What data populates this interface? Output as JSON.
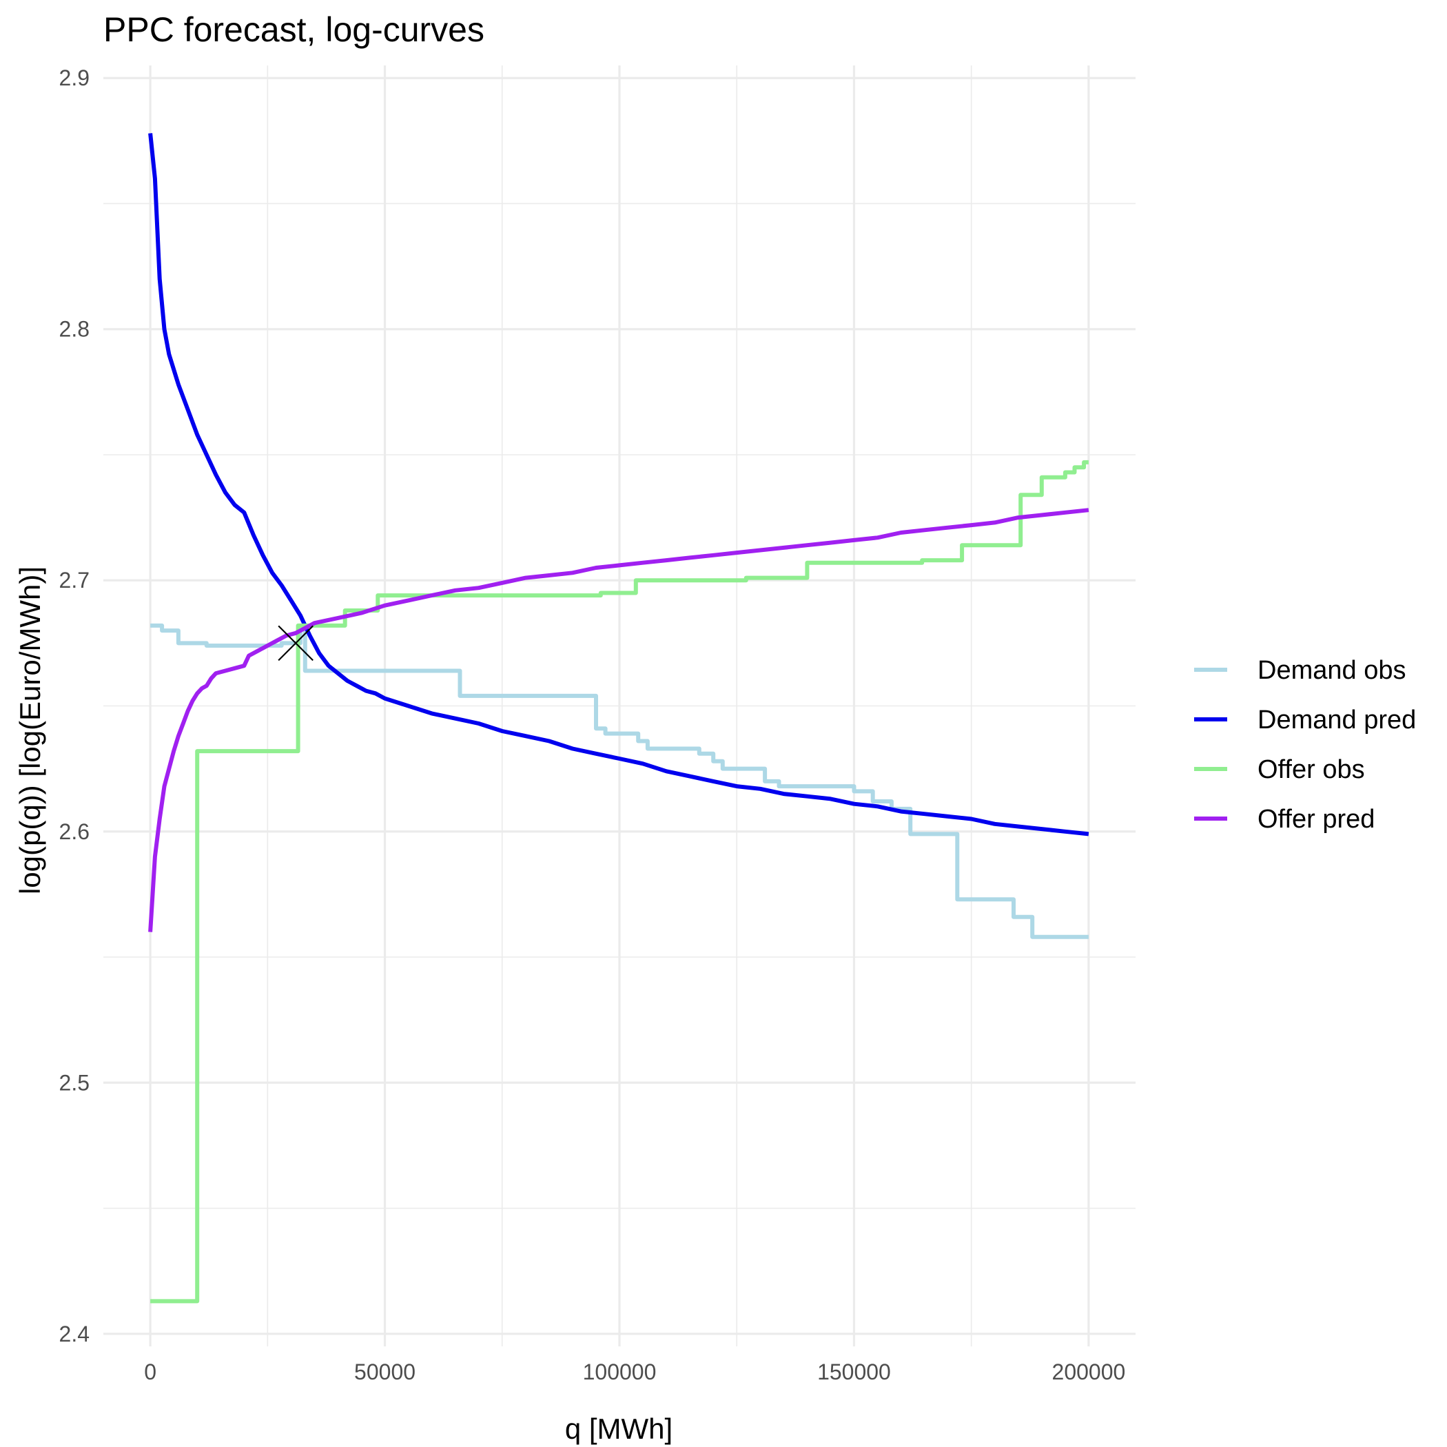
{
  "chart_data": {
    "type": "line",
    "title": "PPC forecast, log-curves",
    "xlabel": "q [MWh]",
    "ylabel": "log(p(q)) [log(Euro/MWh)]",
    "xlim": [
      -10000,
      210000
    ],
    "ylim": [
      2.395,
      2.905
    ],
    "x_ticks": [
      0,
      50000,
      100000,
      150000,
      200000
    ],
    "x_tick_labels": [
      "0",
      "50000",
      "100000",
      "150000",
      "200000"
    ],
    "y_ticks": [
      2.4,
      2.5,
      2.6,
      2.7,
      2.8,
      2.9
    ],
    "y_tick_labels": [
      "2.4",
      "2.5",
      "2.6",
      "2.7",
      "2.8",
      "2.9"
    ],
    "grid": true,
    "legend_position": "right",
    "series": [
      {
        "name": "Demand obs",
        "color": "#add8e6",
        "step": true,
        "points": [
          [
            0,
            2.682
          ],
          [
            2500,
            2.682
          ],
          [
            2500,
            2.68
          ],
          [
            6000,
            2.68
          ],
          [
            6000,
            2.675
          ],
          [
            12000,
            2.675
          ],
          [
            12000,
            2.674
          ],
          [
            28000,
            2.674
          ],
          [
            28000,
            2.675
          ],
          [
            32000,
            2.675
          ],
          [
            32000,
            2.682
          ],
          [
            33000,
            2.682
          ],
          [
            33000,
            2.664
          ],
          [
            66000,
            2.664
          ],
          [
            66000,
            2.654
          ],
          [
            95000,
            2.654
          ],
          [
            95000,
            2.641
          ],
          [
            97000,
            2.641
          ],
          [
            97000,
            2.639
          ],
          [
            104000,
            2.639
          ],
          [
            104000,
            2.636
          ],
          [
            106000,
            2.636
          ],
          [
            106000,
            2.633
          ],
          [
            117000,
            2.633
          ],
          [
            117000,
            2.631
          ],
          [
            120000,
            2.631
          ],
          [
            120000,
            2.628
          ],
          [
            122000,
            2.628
          ],
          [
            122000,
            2.625
          ],
          [
            131000,
            2.625
          ],
          [
            131000,
            2.62
          ],
          [
            134000,
            2.62
          ],
          [
            134000,
            2.618
          ],
          [
            150000,
            2.618
          ],
          [
            150000,
            2.616
          ],
          [
            154000,
            2.616
          ],
          [
            154000,
            2.612
          ],
          [
            158000,
            2.612
          ],
          [
            158000,
            2.609
          ],
          [
            162000,
            2.609
          ],
          [
            162000,
            2.599
          ],
          [
            172000,
            2.599
          ],
          [
            172000,
            2.573
          ],
          [
            184000,
            2.573
          ],
          [
            184000,
            2.566
          ],
          [
            188000,
            2.566
          ],
          [
            188000,
            2.558
          ],
          [
            200000,
            2.558
          ]
        ]
      },
      {
        "name": "Demand pred",
        "color": "#0000ee",
        "step": false,
        "points": [
          [
            0,
            2.878
          ],
          [
            1000,
            2.86
          ],
          [
            1500,
            2.84
          ],
          [
            2000,
            2.82
          ],
          [
            3000,
            2.8
          ],
          [
            4000,
            2.79
          ],
          [
            6000,
            2.778
          ],
          [
            8000,
            2.768
          ],
          [
            10000,
            2.758
          ],
          [
            12000,
            2.75
          ],
          [
            14000,
            2.742
          ],
          [
            16000,
            2.735
          ],
          [
            18000,
            2.73
          ],
          [
            20000,
            2.727
          ],
          [
            22000,
            2.718
          ],
          [
            24000,
            2.71
          ],
          [
            26000,
            2.703
          ],
          [
            28000,
            2.698
          ],
          [
            30000,
            2.692
          ],
          [
            32000,
            2.686
          ],
          [
            33000,
            2.682
          ],
          [
            34000,
            2.678
          ],
          [
            36000,
            2.671
          ],
          [
            38000,
            2.666
          ],
          [
            40000,
            2.663
          ],
          [
            42000,
            2.66
          ],
          [
            44000,
            2.658
          ],
          [
            46000,
            2.656
          ],
          [
            48000,
            2.655
          ],
          [
            50000,
            2.653
          ],
          [
            55000,
            2.65
          ],
          [
            60000,
            2.647
          ],
          [
            65000,
            2.645
          ],
          [
            70000,
            2.643
          ],
          [
            75000,
            2.64
          ],
          [
            80000,
            2.638
          ],
          [
            85000,
            2.636
          ],
          [
            90000,
            2.633
          ],
          [
            95000,
            2.631
          ],
          [
            100000,
            2.629
          ],
          [
            105000,
            2.627
          ],
          [
            110000,
            2.624
          ],
          [
            115000,
            2.622
          ],
          [
            120000,
            2.62
          ],
          [
            125000,
            2.618
          ],
          [
            130000,
            2.617
          ],
          [
            135000,
            2.615
          ],
          [
            140000,
            2.614
          ],
          [
            145000,
            2.613
          ],
          [
            150000,
            2.611
          ],
          [
            155000,
            2.61
          ],
          [
            160000,
            2.608
          ],
          [
            165000,
            2.607
          ],
          [
            170000,
            2.606
          ],
          [
            175000,
            2.605
          ],
          [
            180000,
            2.603
          ],
          [
            185000,
            2.602
          ],
          [
            190000,
            2.601
          ],
          [
            195000,
            2.6
          ],
          [
            200000,
            2.599
          ]
        ]
      },
      {
        "name": "Offer obs",
        "color": "#90ee90",
        "step": true,
        "points": [
          [
            0,
            2.413
          ],
          [
            10000,
            2.413
          ],
          [
            10000,
            2.632
          ],
          [
            31500,
            2.632
          ],
          [
            31500,
            2.682
          ],
          [
            41500,
            2.682
          ],
          [
            41500,
            2.688
          ],
          [
            48500,
            2.688
          ],
          [
            48500,
            2.694
          ],
          [
            96000,
            2.694
          ],
          [
            96000,
            2.695
          ],
          [
            103500,
            2.695
          ],
          [
            103500,
            2.7
          ],
          [
            127000,
            2.7
          ],
          [
            127000,
            2.701
          ],
          [
            140000,
            2.701
          ],
          [
            140000,
            2.707
          ],
          [
            164500,
            2.707
          ],
          [
            164500,
            2.708
          ],
          [
            173000,
            2.708
          ],
          [
            173000,
            2.714
          ],
          [
            185500,
            2.714
          ],
          [
            185500,
            2.734
          ],
          [
            190000,
            2.734
          ],
          [
            190000,
            2.741
          ],
          [
            195000,
            2.741
          ],
          [
            195000,
            2.743
          ],
          [
            197000,
            2.743
          ],
          [
            197000,
            2.745
          ],
          [
            199000,
            2.745
          ],
          [
            199000,
            2.747
          ],
          [
            200000,
            2.747
          ]
        ]
      },
      {
        "name": "Offer pred",
        "color": "#a020f0",
        "step": false,
        "points": [
          [
            0,
            2.56
          ],
          [
            500,
            2.575
          ],
          [
            1000,
            2.59
          ],
          [
            2000,
            2.605
          ],
          [
            3000,
            2.618
          ],
          [
            4000,
            2.625
          ],
          [
            5000,
            2.632
          ],
          [
            6000,
            2.638
          ],
          [
            7000,
            2.643
          ],
          [
            8000,
            2.648
          ],
          [
            9000,
            2.652
          ],
          [
            10000,
            2.655
          ],
          [
            11000,
            2.657
          ],
          [
            12000,
            2.658
          ],
          [
            13000,
            2.661
          ],
          [
            14000,
            2.663
          ],
          [
            16000,
            2.664
          ],
          [
            18000,
            2.665
          ],
          [
            20000,
            2.666
          ],
          [
            21000,
            2.67
          ],
          [
            23000,
            2.672
          ],
          [
            25000,
            2.674
          ],
          [
            27000,
            2.676
          ],
          [
            29000,
            2.678
          ],
          [
            31000,
            2.679
          ],
          [
            33000,
            2.681
          ],
          [
            35000,
            2.683
          ],
          [
            40000,
            2.685
          ],
          [
            45000,
            2.687
          ],
          [
            50000,
            2.69
          ],
          [
            55000,
            2.692
          ],
          [
            60000,
            2.694
          ],
          [
            65000,
            2.696
          ],
          [
            70000,
            2.697
          ],
          [
            75000,
            2.699
          ],
          [
            80000,
            2.701
          ],
          [
            85000,
            2.702
          ],
          [
            90000,
            2.703
          ],
          [
            95000,
            2.705
          ],
          [
            100000,
            2.706
          ],
          [
            105000,
            2.707
          ],
          [
            110000,
            2.708
          ],
          [
            115000,
            2.709
          ],
          [
            120000,
            2.71
          ],
          [
            125000,
            2.711
          ],
          [
            130000,
            2.712
          ],
          [
            135000,
            2.713
          ],
          [
            140000,
            2.714
          ],
          [
            145000,
            2.715
          ],
          [
            150000,
            2.716
          ],
          [
            155000,
            2.717
          ],
          [
            160000,
            2.719
          ],
          [
            165000,
            2.72
          ],
          [
            170000,
            2.721
          ],
          [
            175000,
            2.722
          ],
          [
            180000,
            2.723
          ],
          [
            185000,
            2.725
          ],
          [
            190000,
            2.726
          ],
          [
            195000,
            2.727
          ],
          [
            200000,
            2.728
          ]
        ]
      }
    ],
    "annotations": [
      {
        "type": "marker",
        "shape": "cross",
        "x": 31000,
        "y": 2.675,
        "color": "#000000"
      }
    ]
  }
}
